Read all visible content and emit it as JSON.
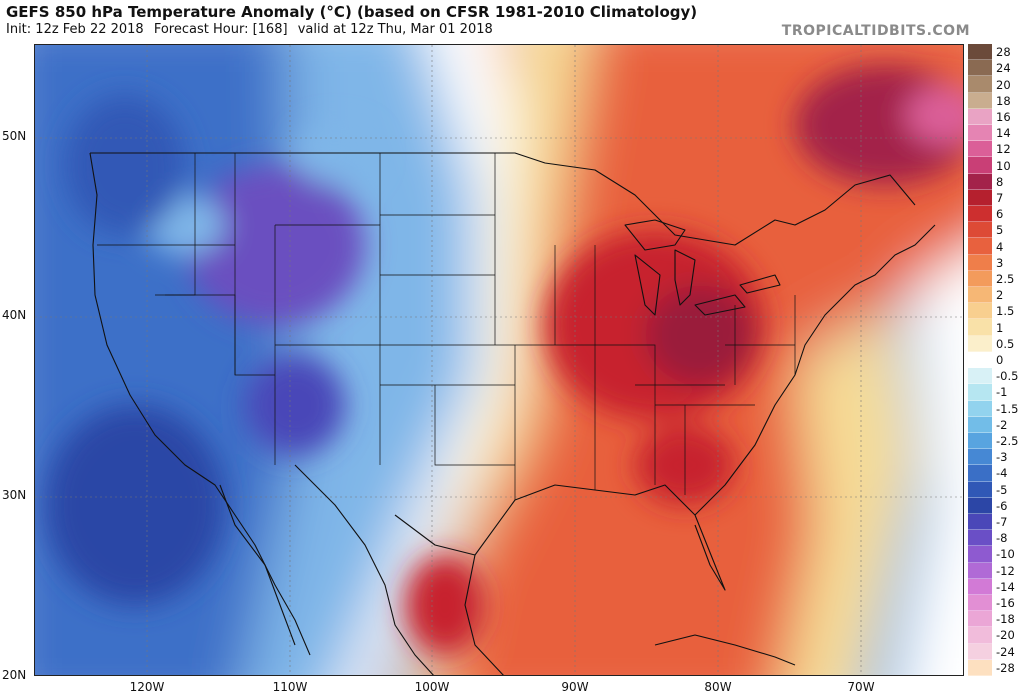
{
  "header": {
    "title": "GEFS 850 hPa Temperature Anomaly (°C) (based on CFSR 1981-2010 Climatology)",
    "init": "Init: 12z Feb 22 2018",
    "forecast_hour": "Forecast Hour: [168]",
    "valid": "valid at 12z Thu, Mar 01 2018"
  },
  "brand": "TROPICALTIDBITS.COM",
  "map": {
    "lat_labels": [
      "50N",
      "40N",
      "30N",
      "20N"
    ],
    "lon_labels": [
      "120W",
      "110W",
      "100W",
      "90W",
      "80W",
      "70W"
    ],
    "region_colors": {
      "deep_cold": "#6a4fc0",
      "cold": "#3e6fc8",
      "cool": "#7fb6e8",
      "neutral": "#ffffff",
      "mild_warm": "#f6dc96",
      "warm": "#e8613e",
      "hot": "#c7242f",
      "very_hot": "#9a1f3a"
    }
  },
  "colorbar": {
    "levels": [
      {
        "label": "28",
        "color": "#6b4a3a"
      },
      {
        "label": "24",
        "color": "#8a6a52"
      },
      {
        "label": "20",
        "color": "#a98a6c"
      },
      {
        "label": "18",
        "color": "#c9ad8f"
      },
      {
        "label": "16",
        "color": "#e9a3c4"
      },
      {
        "label": "14",
        "color": "#e584b3"
      },
      {
        "label": "12",
        "color": "#db5f98"
      },
      {
        "label": "10",
        "color": "#c93f76"
      },
      {
        "label": "8",
        "color": "#a3224a"
      },
      {
        "label": "7",
        "color": "#b5202e"
      },
      {
        "label": "6",
        "color": "#cd2f2f"
      },
      {
        "label": "5",
        "color": "#dd4a36"
      },
      {
        "label": "4",
        "color": "#e8613e"
      },
      {
        "label": "3",
        "color": "#ef7e4a"
      },
      {
        "label": "2.5",
        "color": "#f39b5c"
      },
      {
        "label": "2",
        "color": "#f6b775"
      },
      {
        "label": "1.5",
        "color": "#f8cf8f"
      },
      {
        "label": "1",
        "color": "#f9e1a8"
      },
      {
        "label": "0.5",
        "color": "#fbefcb"
      },
      {
        "label": "0",
        "color": "#ffffff"
      },
      {
        "label": "-0.5",
        "color": "#d8f1f6"
      },
      {
        "label": "-1",
        "color": "#b6e6f1"
      },
      {
        "label": "-1.5",
        "color": "#92d3ee"
      },
      {
        "label": "-2",
        "color": "#72bde8"
      },
      {
        "label": "-2.5",
        "color": "#58a4e0"
      },
      {
        "label": "-3",
        "color": "#4688d4"
      },
      {
        "label": "-4",
        "color": "#3a6fc6"
      },
      {
        "label": "-5",
        "color": "#3058b6"
      },
      {
        "label": "-6",
        "color": "#2c46a6"
      },
      {
        "label": "-7",
        "color": "#4a47b8"
      },
      {
        "label": "-8",
        "color": "#6a4fc6"
      },
      {
        "label": "-10",
        "color": "#8e5ad0"
      },
      {
        "label": "-12",
        "color": "#b06ad6"
      },
      {
        "label": "-14",
        "color": "#d27ad6"
      },
      {
        "label": "-16",
        "color": "#e28fd4"
      },
      {
        "label": "-18",
        "color": "#eba6d6"
      },
      {
        "label": "-20",
        "color": "#f1bcdb"
      },
      {
        "label": "-24",
        "color": "#f5d0e0"
      },
      {
        "label": "-28",
        "color": "#fde0c0"
      }
    ]
  }
}
